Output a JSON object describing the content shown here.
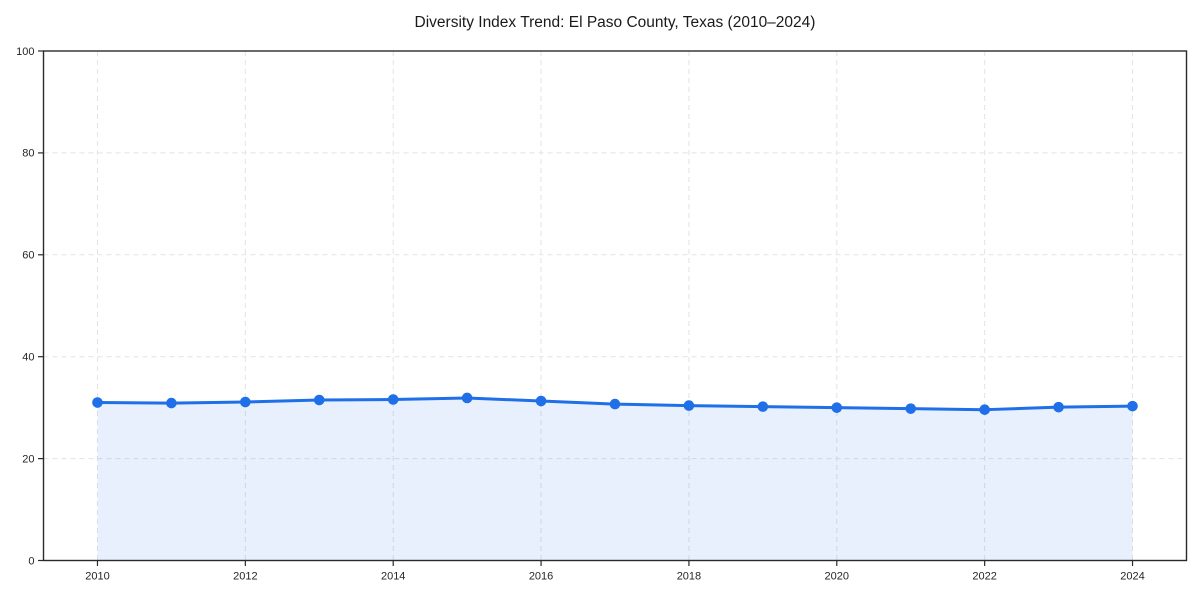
{
  "page": {
    "background": "#ffffff"
  },
  "chart_data": {
    "type": "area",
    "title": "Diversity Index Trend: El Paso County, Texas (2010–2024)",
    "x": [
      2010,
      2011,
      2012,
      2013,
      2014,
      2015,
      2016,
      2017,
      2018,
      2019,
      2020,
      2021,
      2022,
      2023,
      2024
    ],
    "series": [
      {
        "name": "Diversity Index",
        "values": [
          31.0,
          30.9,
          31.1,
          31.5,
          31.6,
          31.9,
          31.3,
          30.7,
          30.4,
          30.2,
          30.0,
          29.8,
          29.6,
          30.1,
          30.3
        ]
      }
    ],
    "xlabel": "",
    "ylabel": "",
    "ylim": [
      0,
      100
    ],
    "xlim": [
      2009.27,
      2024.73
    ],
    "yticks": [
      0,
      20,
      40,
      60,
      80,
      100
    ],
    "xticks": [
      2010,
      2012,
      2014,
      2016,
      2018,
      2020,
      2022,
      2024
    ],
    "grid": true,
    "grid_style": "dashed",
    "legend": false,
    "marker": "circle",
    "colors": {
      "line": "#1f6fe8",
      "marker": "#1f6fe8",
      "fill": "#1f6fe8",
      "fill_opacity": 0.1,
      "grid": "#e3e3e3",
      "axis": "#2a2a2a",
      "text": "#1a1a1a",
      "background": "#ffffff"
    }
  }
}
